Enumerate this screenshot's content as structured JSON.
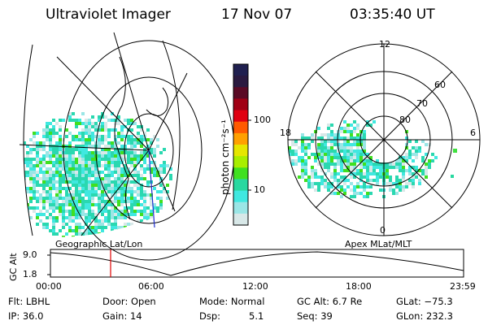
{
  "header": {
    "title": "Ultraviolet Imager",
    "date": "17 Nov 07",
    "time": "03:35:40 UT"
  },
  "colorbar": {
    "label": "photon cm⁻²s⁻¹",
    "ticks": [
      "100",
      "10"
    ],
    "colors": [
      "#202050",
      "#2a1a40",
      "#5a0a25",
      "#a00015",
      "#e00010",
      "#ff5a00",
      "#ffa000",
      "#e6e600",
      "#a8ee00",
      "#40e020",
      "#28d8a0",
      "#40e8e0",
      "#9ae6e6",
      "#d8e8e8"
    ]
  },
  "left_panel": {
    "label": "Geographic Lat/Lon"
  },
  "right_panel": {
    "label": "Apex MLat/MLT",
    "lat_labels": [
      "60",
      "70",
      "80"
    ],
    "mlt_labels": {
      "top": "12",
      "left": "18",
      "right": "6",
      "bottom": "0"
    }
  },
  "timeline": {
    "axis_label": "GC Alt",
    "y_ticks": [
      "9.0",
      "1.8"
    ],
    "x_ticks": [
      "00:00",
      "06:00",
      "12:00",
      "18:00",
      "23:59"
    ],
    "marker_color": "#e00000"
  },
  "info": {
    "flt": "Flt: LBHL",
    "ip": "IP: 36.0",
    "door": "Door: Open",
    "gain": "Gain: 14",
    "mode": "Mode: Normal",
    "dsp_label": "Dsp:",
    "dsp_value": "5.1",
    "gc_alt": "GC Alt: 6.7 Re",
    "seq": "Seq: 39",
    "glat": "GLat: −75.3",
    "glon": "GLon: 232.3"
  }
}
